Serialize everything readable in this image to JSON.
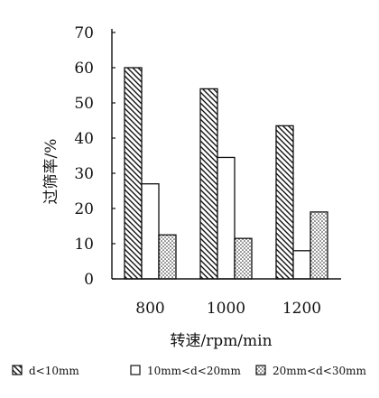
{
  "chart_data": {
    "type": "bar",
    "title": "",
    "xlabel": "转速/rpm/min",
    "ylabel": "过筛率/%",
    "ylim": [
      0,
      70
    ],
    "yticks": [
      0,
      10,
      20,
      30,
      40,
      50,
      60,
      70
    ],
    "categories": [
      "800",
      "1000",
      "1200"
    ],
    "series": [
      {
        "name": "d<10mm",
        "values": [
          60,
          54,
          43.5
        ],
        "pattern": "diagonal-hatch"
      },
      {
        "name": "10mm<d<20mm",
        "values": [
          27,
          34.5,
          8
        ],
        "pattern": "white"
      },
      {
        "name": "20mm<d<30mm",
        "values": [
          12.5,
          11.5,
          19
        ],
        "pattern": "dotted"
      }
    ],
    "legend_position": "bottom",
    "grid": false,
    "colors": {
      "ink": "#111111",
      "background": "#ffffff"
    }
  }
}
